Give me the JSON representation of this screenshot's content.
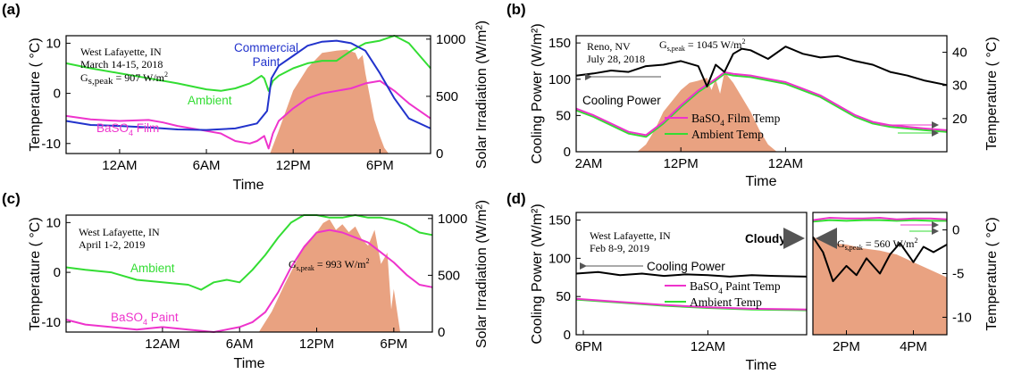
{
  "colors": {
    "ambient": "#33dd33",
    "baso4": "#ee33cc",
    "commercial": "#2233cc",
    "cooling": "#000000",
    "solar_fill": "#e9a281",
    "arrow": "#666666"
  },
  "chart_data": [
    {
      "panel": "(a)",
      "type": "line",
      "xlabel": "Time",
      "ylabel": "Temperature ( °C)",
      "y2label": "Solar Irradiation (W/m²)",
      "xticks": [
        "12AM",
        "6AM",
        "12PM",
        "6PM"
      ],
      "yticks": [
        "-10",
        "0",
        "10"
      ],
      "y2ticks": [
        "0",
        "500",
        "1000"
      ],
      "x_range_hours": [
        -3.7,
        21.5
      ],
      "ylim": [
        -12,
        11.5
      ],
      "y2lim": [
        0,
        1030
      ],
      "annotations": [
        "West Lafayette, IN",
        "March 14-15, 2018",
        "G",
        "s,peak",
        " = 907 W/m",
        "2"
      ],
      "series": [
        {
          "name": "Commercial Paint",
          "name_lines": [
            "Commercial",
            "Paint"
          ],
          "x": [
            -3.7,
            -2,
            0,
            2,
            4,
            6,
            8,
            9.5,
            10.2,
            10.5,
            11,
            12,
            13,
            14,
            15,
            16,
            17,
            18,
            19,
            20,
            21.5
          ],
          "values": [
            -5.5,
            -6.3,
            -6.5,
            -6.8,
            -7.2,
            -7.3,
            -7.0,
            -6.0,
            -3.5,
            3.0,
            5.5,
            7.5,
            9.5,
            10.3,
            10.5,
            10.0,
            8.5,
            4.0,
            -1.0,
            -5.0,
            -7.0
          ]
        },
        {
          "name": "BaSO4 Film",
          "name_main": "BaSO",
          "name_sub": "4",
          "name_tail": " Film",
          "x": [
            -3.7,
            -2,
            0,
            2,
            3,
            4,
            6,
            7,
            8,
            9,
            9.5,
            10,
            10.3,
            10.6,
            11,
            12,
            13,
            14,
            15,
            16,
            17,
            18,
            19,
            20,
            21.5
          ],
          "values": [
            -4.5,
            -5.2,
            -5.5,
            -5.3,
            -5.8,
            -6.5,
            -7.5,
            -8.0,
            -9.5,
            -10.0,
            -9.5,
            -8.5,
            -11.0,
            -8.0,
            -5.5,
            -3.0,
            -1.0,
            0.0,
            0.5,
            1.0,
            2.0,
            2.5,
            0.5,
            -2.0,
            -5.0
          ]
        },
        {
          "name": "Ambient",
          "x": [
            -3.7,
            -2,
            0,
            2,
            4,
            6,
            7,
            8,
            9,
            9.8,
            10,
            10.3,
            10.6,
            11,
            12,
            13,
            14,
            15,
            16,
            17,
            18,
            19,
            20,
            21.5
          ],
          "values": [
            6.0,
            5.0,
            4.0,
            3.0,
            2.0,
            0.8,
            0.5,
            1.0,
            2.0,
            3.5,
            3.0,
            0.5,
            2.5,
            3.5,
            5.0,
            6.0,
            6.5,
            6.5,
            8.5,
            10.0,
            10.5,
            11.5,
            10.0,
            5.0
          ]
        },
        {
          "name": "Solar Irradiation",
          "x": [
            -3.7,
            10.4,
            11,
            12,
            13,
            14,
            15,
            15.7,
            16.3,
            16.5,
            16.8,
            17,
            17.3,
            17.6,
            18,
            18.3,
            18.6,
            21.5
          ],
          "values": [
            0,
            0,
            200,
            550,
            750,
            880,
            900,
            907,
            880,
            820,
            860,
            700,
            500,
            300,
            150,
            50,
            0,
            0
          ]
        }
      ]
    },
    {
      "panel": "(b)",
      "type": "line",
      "xlabel": "Time",
      "ylabel": "Cooling Power (W/m²)",
      "y2label": "Temperature ( °C)",
      "xticks": [
        "2AM",
        "12PM",
        "12AM"
      ],
      "yticks": [
        "0",
        "50",
        "100",
        "150"
      ],
      "y2ticks": [
        "20",
        "30",
        "40"
      ],
      "x_range_hours": [
        0,
        42.5
      ],
      "ylim": [
        0,
        160
      ],
      "y2lim": [
        10,
        45
      ],
      "annotations": [
        "Reno, NV",
        "July 28, 2018",
        "G",
        "s,peak",
        " = 1045 W/m",
        "2"
      ],
      "series": [
        {
          "name": "Cooling Power",
          "x": [
            0,
            2,
            4,
            6,
            8,
            10,
            12,
            14,
            15,
            16,
            17,
            18,
            19,
            20,
            22,
            24,
            26,
            28,
            30,
            32,
            34,
            36,
            38,
            40,
            42.5
          ],
          "values": [
            105,
            108,
            112,
            110,
            118,
            120,
            125,
            118,
            90,
            120,
            110,
            135,
            142,
            140,
            128,
            145,
            135,
            130,
            132,
            125,
            120,
            110,
            105,
            98,
            92
          ]
        },
        {
          "name": "BaSO4 Film Temp",
          "name_main": "BaSO",
          "name_sub": "4",
          "name_tail": " Film Temp",
          "x": [
            0,
            2,
            4,
            6,
            8,
            10,
            12,
            14,
            16,
            17,
            18,
            20,
            22,
            24,
            26,
            28,
            30,
            32,
            34,
            36,
            38,
            40,
            42.5
          ],
          "values": [
            23,
            21,
            18.5,
            16,
            15,
            19,
            24,
            28.5,
            32,
            34,
            33.5,
            33,
            32,
            31,
            29,
            27,
            24,
            21,
            19,
            18,
            17.5,
            17,
            16.5
          ]
        },
        {
          "name": "Ambient Temp",
          "x": [
            0,
            2,
            4,
            6,
            8,
            10,
            12,
            14,
            16,
            17,
            18,
            20,
            22,
            24,
            26,
            28,
            30,
            32,
            34,
            36,
            38,
            40,
            42.5
          ],
          "values": [
            22.5,
            20.5,
            18,
            15.5,
            14.5,
            18.5,
            23.5,
            28,
            31.5,
            33.5,
            33,
            32.5,
            31.5,
            30.5,
            28.5,
            26.5,
            23.5,
            20.5,
            18.5,
            17.5,
            17,
            16.5,
            16
          ]
        },
        {
          "name": "Solar Irradiation",
          "x": [
            0,
            7,
            8,
            9,
            10,
            12,
            13,
            14,
            15,
            15.5,
            16,
            16.5,
            17,
            18,
            20,
            21,
            22,
            23,
            42.5
          ],
          "values": [
            0,
            0,
            10,
            30,
            55,
            85,
            95,
            98,
            102,
            85,
            100,
            80,
            110,
            95,
            55,
            30,
            10,
            0,
            0
          ]
        }
      ]
    },
    {
      "panel": "(c)",
      "type": "line",
      "xlabel": "Time",
      "ylabel": "Temperature ( °C)",
      "y2label": "Solar Irradiation (W/m²)",
      "xticks": [
        "12AM",
        "6AM",
        "12PM",
        "6PM"
      ],
      "yticks": [
        "-10",
        "0",
        "10"
      ],
      "y2ticks": [
        "0",
        "500",
        "1000"
      ],
      "x_range_hours": [
        -7.5,
        21
      ],
      "ylim": [
        -12,
        11.5
      ],
      "y2lim": [
        0,
        1030
      ],
      "annotations": [
        "West Lafayette, IN",
        "April 1-2, 2019",
        "G",
        "s,peak",
        " = 993 W/m",
        "2"
      ],
      "series": [
        {
          "name": "Ambient",
          "x": [
            -7.5,
            -6,
            -4,
            -2,
            0,
            2,
            3,
            4,
            5,
            6,
            7,
            8,
            9,
            10,
            11,
            12,
            13,
            14,
            15,
            16,
            17,
            18,
            19,
            20,
            21
          ],
          "values": [
            1.0,
            0.5,
            0.0,
            -1.5,
            -2.0,
            -2.5,
            -3.5,
            -2.0,
            -1.5,
            -2.0,
            0.5,
            3.5,
            7.0,
            10.0,
            11.5,
            11.5,
            11.0,
            11.0,
            11.5,
            11.0,
            11.0,
            10.5,
            9.5,
            8.0,
            7.5
          ]
        },
        {
          "name": "BaSO4 Paint",
          "name_main": "BaSO",
          "name_sub": "4",
          "name_tail": " Paint",
          "x": [
            -7.5,
            -6,
            -4,
            -2,
            0,
            2,
            4,
            5,
            6,
            7,
            8,
            9,
            10,
            11,
            12,
            13,
            14,
            15,
            16,
            17,
            18,
            19,
            20,
            21
          ],
          "values": [
            -9.5,
            -10.5,
            -11.0,
            -11.5,
            -11.0,
            -11.5,
            -12.0,
            -11.5,
            -11.0,
            -10.0,
            -8.0,
            -4.0,
            1.0,
            5.0,
            8.0,
            8.5,
            8.0,
            7.0,
            6.0,
            4.0,
            2.0,
            -0.5,
            -2.5,
            -3.0
          ]
        },
        {
          "name": "Solar Irradiation",
          "x": [
            -7.5,
            7.5,
            8.5,
            9.5,
            10.5,
            11,
            12,
            12.5,
            13,
            13.5,
            14,
            14.5,
            15,
            15.5,
            16,
            16.5,
            17,
            17.5,
            17.8,
            18,
            18.5,
            21
          ],
          "values": [
            0,
            0,
            180,
            420,
            640,
            760,
            880,
            960,
            993,
            900,
            950,
            880,
            930,
            820,
            760,
            900,
            600,
            700,
            200,
            380,
            0,
            0
          ]
        }
      ]
    },
    {
      "panel": "(d)",
      "type": "line",
      "xlabel": "Time",
      "ylabel": "Cooling Power (W/m²)",
      "y2label": "Temperature ( °C)",
      "xticks": [
        "6PM",
        "12AM",
        "2PM",
        "4PM"
      ],
      "yticks": [
        "0",
        "50",
        "100",
        "150"
      ],
      "y2ticks": [
        "0",
        "-5",
        "-10"
      ],
      "annotations": [
        "West Lafayette, IN",
        "Feb 8-9, 2019",
        "Cloudy",
        "G",
        "s,peak",
        " = 560 W/m",
        "2"
      ],
      "segments": [
        {
          "x_range_hours": [
            18,
            28.5
          ],
          "series": [
            {
              "name": "Cooling Power",
              "x": [
                18,
                19,
                20,
                21,
                22,
                23,
                24,
                25,
                26,
                27,
                28.5
              ],
              "values": [
                80,
                82,
                78,
                80,
                77,
                79,
                78,
                76,
                78,
                77,
                76
              ]
            },
            {
              "name": "BaSO4 Paint Temp",
              "name_main": "BaSO",
              "name_sub": "4",
              "name_tail": " Paint Temp",
              "x": [
                18,
                20,
                22,
                24,
                26,
                28.5
              ],
              "values": [
                47,
                43,
                39,
                36,
                34,
                33
              ]
            },
            {
              "name": "Ambient Temp",
              "x": [
                18,
                20,
                22,
                24,
                26,
                28.5
              ],
              "values": [
                46,
                42,
                38,
                35,
                33,
                32
              ]
            }
          ]
        },
        {
          "x_range_hours": [
            13,
            17
          ],
          "series": [
            {
              "name": "Cooling Power",
              "x": [
                13,
                13.3,
                13.6,
                14,
                14.3,
                14.6,
                15,
                15.3,
                15.6,
                16,
                16.3,
                16.6,
                17
              ],
              "values": [
                128,
                108,
                70,
                90,
                78,
                100,
                80,
                105,
                120,
                95,
                115,
                108,
                118
              ]
            },
            {
              "name": "BaSO4 Paint Temp",
              "x": [
                13,
                13.5,
                14,
                14.5,
                15,
                15.5,
                16,
                16.5,
                17
              ],
              "values": [
                150,
                153,
                152,
                152,
                153,
                151,
                152,
                152,
                151
              ]
            },
            {
              "name": "Ambient Temp",
              "x": [
                13,
                13.5,
                14,
                14.5,
                15,
                15.5,
                16,
                16.5,
                17
              ],
              "values": [
                148,
                150,
                149,
                150,
                150,
                149,
                150,
                149,
                149
              ]
            },
            {
              "name": "Solar Irradiation",
              "x": [
                13,
                13.5,
                14,
                14.5,
                15,
                15.5,
                16,
                16.5,
                17
              ],
              "values": [
                128,
                120,
                118,
                113,
                110,
                105,
                95,
                85,
                75
              ]
            }
          ]
        }
      ]
    }
  ]
}
